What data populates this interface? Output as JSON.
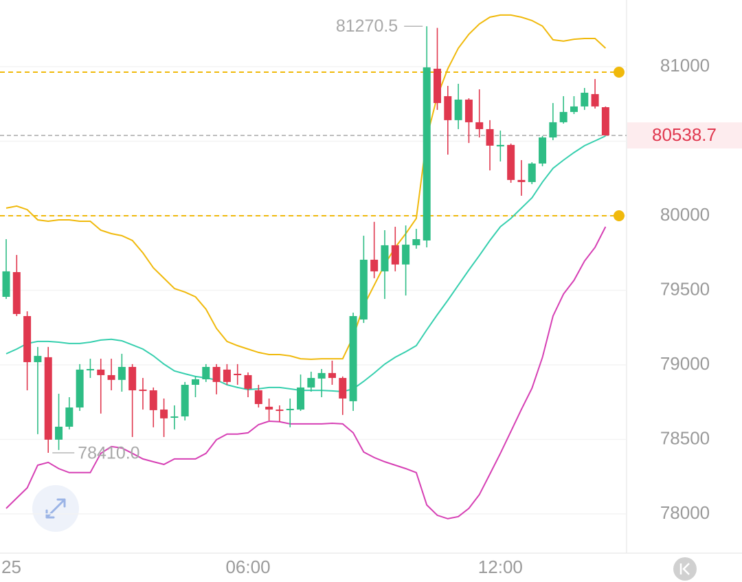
{
  "chart_data": {
    "type": "candlestick",
    "up_color": "#2ebd85",
    "down_color": "#e0384f",
    "x": [
      0.25,
      0.5,
      0.75,
      1,
      1.25,
      1.5,
      1.75,
      2,
      2.25,
      2.5,
      2.75,
      3,
      3.25,
      3.5,
      3.75,
      4,
      4.25,
      4.5,
      4.75,
      5,
      5.25,
      5.5,
      5.75,
      6,
      6.25,
      6.5,
      6.75,
      7,
      7.25,
      7.5,
      7.75,
      8,
      8.25,
      8.5,
      8.75,
      9,
      9.25,
      9.5,
      9.75,
      10,
      10.25,
      10.5,
      10.75,
      11,
      11.25,
      11.5,
      11.75,
      12,
      12.25,
      12.5,
      12.75,
      13,
      13.25,
      13.5,
      13.75,
      14,
      14.25,
      14.5
    ],
    "open": [
      79456,
      79622,
      79327,
      79018,
      79051,
      78498,
      78585,
      78714,
      78963,
      78968,
      78931,
      78899,
      78986,
      78834,
      78829,
      78700,
      78645,
      78654,
      78866,
      78903,
      78986,
      78968,
      78940,
      78931,
      78829,
      78719,
      78700,
      78696,
      78700,
      78848,
      78908,
      78945,
      78912,
      78756,
      79304,
      79705,
      79627,
      79802,
      79673,
      79802,
      79834,
      80986,
      80802,
      80641,
      80779,
      80627,
      80581,
      80465,
      80475,
      80240,
      80226,
      80350,
      80525,
      80627,
      80696,
      80733,
      80816,
      80728
    ],
    "high": [
      79843,
      79737,
      79359,
      79120,
      79120,
      78806,
      78783,
      79005,
      79041,
      79041,
      79041,
      79074,
      79005,
      78912,
      78848,
      78774,
      78728,
      78885,
      78922,
      79005,
      79005,
      79005,
      79005,
      78949,
      78866,
      78774,
      78728,
      78774,
      78935,
      78954,
      78972,
      79028,
      78922,
      79350,
      79866,
      79959,
      79903,
      79926,
      79935,
      79912,
      81270.5,
      81260,
      80871,
      80885,
      80788,
      80848,
      80641,
      80571,
      80484,
      80373,
      80359,
      80535,
      80756,
      80802,
      80802,
      80857,
      80917,
      80733
    ],
    "low": [
      79442,
      79327,
      78829,
      78535,
      78410,
      78429,
      78567,
      78691,
      78912,
      78673,
      78829,
      78820,
      78516,
      78700,
      78581,
      78516,
      78567,
      78627,
      78783,
      78885,
      78802,
      78866,
      78866,
      78783,
      78714,
      78627,
      78618,
      78581,
      78691,
      78820,
      78783,
      78866,
      78664,
      78691,
      79281,
      79581,
      79442,
      79627,
      79465,
      79779,
      79788,
      80710,
      80410,
      80581,
      80488,
      80525,
      80304,
      80364,
      80221,
      80134,
      80212,
      80332,
      80507,
      80618,
      80682,
      80710,
      80719,
      80538.7
    ],
    "close": [
      79627,
      79341,
      79018,
      79060,
      78498,
      78585,
      78714,
      78968,
      78972,
      78931,
      78899,
      78986,
      78829,
      78829,
      78696,
      78641,
      78654,
      78866,
      78903,
      78986,
      78885,
      78885,
      78935,
      78839,
      78737,
      78700,
      78691,
      78705,
      78848,
      78912,
      78945,
      78912,
      78774,
      79327,
      79705,
      79627,
      79802,
      79673,
      79806,
      79843,
      80995,
      80756,
      80641,
      80779,
      80627,
      80581,
      80470,
      80475,
      80240,
      80226,
      80350,
      80525,
      80627,
      80696,
      80733,
      80825,
      80733,
      80538.7
    ],
    "lines": [
      {
        "color": "#f0b90b",
        "values": [
          80051,
          80065,
          80041,
          79972,
          79963,
          79972,
          79972,
          79963,
          79963,
          79903,
          79880,
          79866,
          79834,
          79751,
          79650,
          79581,
          79512,
          79488,
          79456,
          79373,
          79244,
          79157,
          79129,
          79106,
          79083,
          79069,
          79069,
          79060,
          79041,
          79037,
          79041,
          79041,
          79041,
          79189,
          79396,
          79535,
          79673,
          79788,
          79880,
          79982,
          80525,
          80802,
          80986,
          81124,
          81217,
          81286,
          81332,
          81346,
          81346,
          81332,
          81309,
          81272,
          81180,
          81171,
          81184,
          81189,
          81189,
          81124
        ]
      },
      {
        "color": "#36cfae",
        "values": [
          79074,
          79106,
          79143,
          79157,
          79157,
          79152,
          79143,
          79143,
          79152,
          79166,
          79171,
          79161,
          79134,
          79106,
          79060,
          79005,
          78959,
          78940,
          78922,
          78912,
          78899,
          78866,
          78848,
          78834,
          78839,
          78848,
          78848,
          78839,
          78829,
          78829,
          78829,
          78825,
          78820,
          78839,
          78889,
          78945,
          79005,
          79051,
          79088,
          79129,
          79235,
          79336,
          79433,
          79535,
          79636,
          79733,
          79834,
          79926,
          79982,
          80051,
          80120,
          80226,
          80318,
          80373,
          80424,
          80470,
          80502,
          80535
        ]
      },
      {
        "color": "#d63fb4",
        "values": [
          78037,
          78106,
          78175,
          78327,
          78346,
          78304,
          78277,
          78277,
          78277,
          78406,
          78452,
          78442,
          78406,
          78369,
          78350,
          78332,
          78369,
          78369,
          78369,
          78406,
          78498,
          78535,
          78535,
          78544,
          78599,
          78622,
          78618,
          78604,
          78604,
          78604,
          78604,
          78608,
          78604,
          78544,
          78415,
          78378,
          78350,
          78327,
          78304,
          78277,
          78060,
          77991,
          77968,
          77982,
          78037,
          78129,
          78267,
          78406,
          78553,
          78701,
          78843,
          79051,
          79327,
          79475,
          79567,
          79696,
          79788,
          79926
        ]
      }
    ],
    "price_lines": [
      {
        "value": 80963,
        "color": "#f0b90b"
      },
      {
        "value": 80000,
        "color": "#f0b90b"
      }
    ],
    "annotations": [
      {
        "value": 81270.5,
        "label": "81270.5"
      },
      {
        "value": 78410,
        "label": "78410.0"
      }
    ],
    "xlim": [
      0.103,
      15.0
    ],
    "xticks": [
      {
        "value": 0,
        "label": "25"
      },
      {
        "value": 6,
        "label": "06:00"
      },
      {
        "value": 12,
        "label": "12:00"
      }
    ],
    "ylim": [
      77737,
      81447
    ],
    "yticks": [
      78000,
      78500,
      79000,
      79500,
      80000,
      80500,
      81000
    ],
    "grid": true
  }
}
